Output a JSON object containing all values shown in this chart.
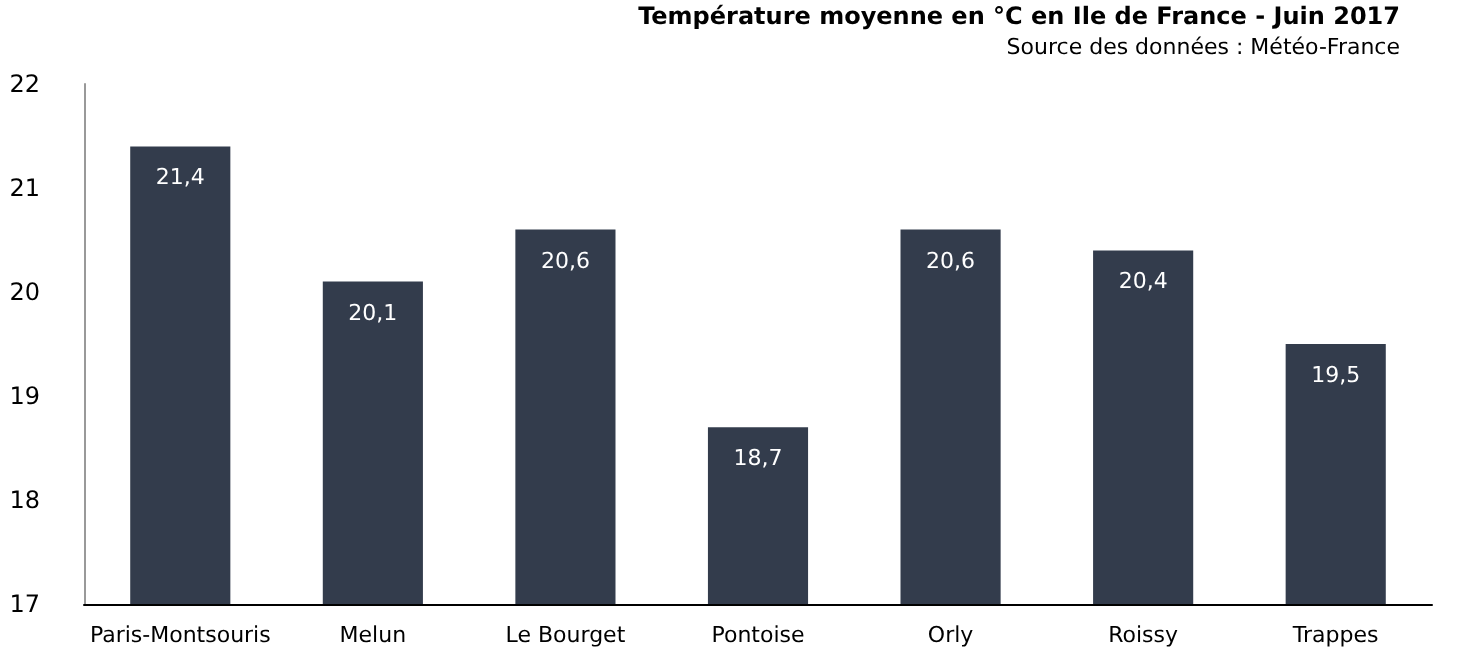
{
  "chart_data": {
    "type": "bar",
    "title": "Température moyenne en °C en Ile de France - Juin 2017",
    "subtitle": "Source des données : Météo-France",
    "categories": [
      "Paris-Montsouris",
      "Melun",
      "Le Bourget",
      "Pontoise",
      "Orly",
      "Roissy",
      "Trappes"
    ],
    "values": [
      21.4,
      20.1,
      20.6,
      18.7,
      20.6,
      20.4,
      19.5
    ],
    "value_labels": [
      "21,4",
      "20,1",
      "20,6",
      "18,7",
      "20,6",
      "20,4",
      "19,5"
    ],
    "color": "#333c4c",
    "ylim": [
      17,
      22
    ],
    "yticks": [
      17,
      18,
      19,
      20,
      21,
      22
    ],
    "grid": false
  }
}
